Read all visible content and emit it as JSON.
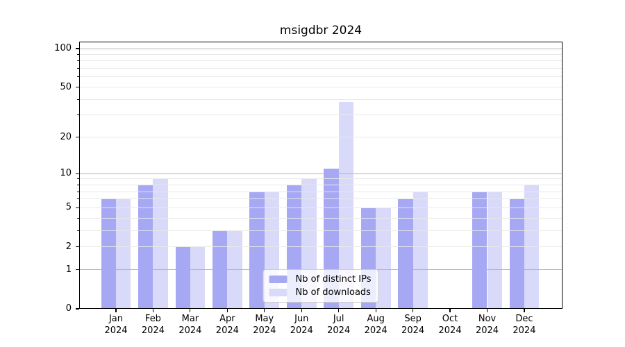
{
  "figure": {
    "title": "msigdbr 2024"
  },
  "chart_data": {
    "type": "bar",
    "title": "msigdbr 2024",
    "categories": [
      "Jan",
      "Feb",
      "Mar",
      "Apr",
      "May",
      "Jun",
      "Jul",
      "Aug",
      "Sep",
      "Oct",
      "Nov",
      "Dec"
    ],
    "year_label": "2024",
    "series": [
      {
        "name": "Nb of distinct IPs",
        "color": "#a7a8f3",
        "values": [
          6,
          8,
          2,
          3,
          7,
          8,
          11,
          5,
          6,
          0,
          7,
          6
        ]
      },
      {
        "name": "Nb of downloads",
        "color": "#d9daf9",
        "values": [
          6,
          9,
          2,
          3,
          7,
          9,
          38,
          5,
          7,
          0,
          7,
          8
        ]
      }
    ],
    "yscale": "log1p",
    "ylim": [
      0,
      113
    ],
    "y_ticks_labeled": [
      0,
      1,
      2,
      5,
      10,
      20,
      50,
      100
    ],
    "y_gridlines_strong": [
      1,
      10,
      100
    ],
    "y_gridlines_light": [
      2,
      3,
      4,
      5,
      6,
      7,
      8,
      9,
      20,
      30,
      40,
      50,
      60,
      70,
      80,
      90
    ],
    "legend_position": "lower center",
    "grid": true,
    "colors": {
      "grid_major": "#b2b2b2",
      "grid_minor": "#e8e8e8",
      "axis": "#000000",
      "background": "#ffffff"
    }
  }
}
